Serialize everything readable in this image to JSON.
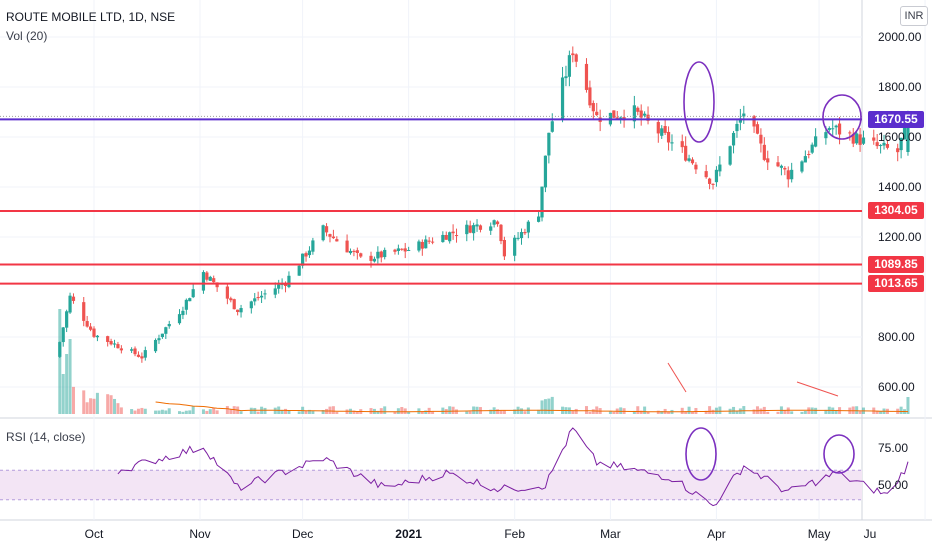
{
  "header": {
    "title": "ROUTE MOBILE LTD, 1D, NSE",
    "volume_label": "Vol (20)",
    "rsi_label": "RSI (14, close)",
    "currency": "INR"
  },
  "colors": {
    "up": "#26a69a",
    "down": "#ef5350",
    "hline": "#f23645",
    "price_line": "#5b2dcd",
    "rsi_line": "#7b1fa2",
    "rsi_band": "#f3e5f5",
    "vol_ma": "#ef6c00",
    "annotation": "#7b2fbf"
  },
  "axes": {
    "price_ticks": [
      "2000.00",
      "1800.00",
      "1600.00",
      "1400.00",
      "1200.00",
      "800.00",
      "600.00"
    ],
    "rsi_ticks": [
      "75.00",
      "50.00"
    ],
    "x_ticks": [
      {
        "label": "Oct",
        "bold": false
      },
      {
        "label": "Nov",
        "bold": false
      },
      {
        "label": "Dec",
        "bold": false
      },
      {
        "label": "2021",
        "bold": true
      },
      {
        "label": "Feb",
        "bold": false
      },
      {
        "label": "Mar",
        "bold": false
      },
      {
        "label": "Apr",
        "bold": false
      },
      {
        "label": "May",
        "bold": false
      },
      {
        "label": "Ju",
        "bold": false
      }
    ]
  },
  "chart_data": {
    "type": "candlestick",
    "title": "ROUTE MOBILE LTD, 1D, NSE",
    "price_ylim": [
      560,
      2030
    ],
    "rsi_ylim": [
      30,
      90
    ],
    "rsi_band": [
      40,
      60
    ],
    "horizontal_levels": [
      {
        "value": 1670.55,
        "label": "1670.55",
        "style": "last_price"
      },
      {
        "value": 1304.05,
        "label": "1304.05",
        "style": "support_resistance"
      },
      {
        "value": 1089.85,
        "label": "1089.85",
        "style": "support_resistance"
      },
      {
        "value": 1013.65,
        "label": "1013.65",
        "style": "support_resistance"
      }
    ],
    "ohlc_anchors": [
      {
        "date": "2020-09-21",
        "close": 780
      },
      {
        "date": "2020-09-24",
        "close": 960
      },
      {
        "date": "2020-10-01",
        "close": 810
      },
      {
        "date": "2020-10-15",
        "close": 720
      },
      {
        "date": "2020-10-27",
        "close": 920
      },
      {
        "date": "2020-11-02",
        "close": 1060
      },
      {
        "date": "2020-11-12",
        "close": 910
      },
      {
        "date": "2020-11-26",
        "close": 1020
      },
      {
        "date": "2020-12-07",
        "close": 1230
      },
      {
        "date": "2020-12-18",
        "close": 1110
      },
      {
        "date": "2021-01-01",
        "close": 1150
      },
      {
        "date": "2021-01-12",
        "close": 1210
      },
      {
        "date": "2021-01-27",
        "close": 1270
      },
      {
        "date": "2021-01-29",
        "close": 1130
      },
      {
        "date": "2021-02-08",
        "close": 1300
      },
      {
        "date": "2021-02-11",
        "close": 1620
      },
      {
        "date": "2021-02-18",
        "close": 1950
      },
      {
        "date": "2021-02-25",
        "close": 1680
      },
      {
        "date": "2021-03-08",
        "close": 1700
      },
      {
        "date": "2021-03-23",
        "close": 1530
      },
      {
        "date": "2021-03-31",
        "close": 1420
      },
      {
        "date": "2021-04-07",
        "close": 1640
      },
      {
        "date": "2021-04-09",
        "close": 1700
      },
      {
        "date": "2021-04-15",
        "close": 1530
      },
      {
        "date": "2021-04-22",
        "close": 1450
      },
      {
        "date": "2021-05-04",
        "close": 1640
      },
      {
        "date": "2021-05-18",
        "close": 1560
      },
      {
        "date": "2021-05-24",
        "close": 1540
      },
      {
        "date": "2021-05-27",
        "close": 1670.55
      }
    ],
    "rsi_anchors": [
      {
        "date": "2020-10-08",
        "value": 60
      },
      {
        "date": "2020-11-02",
        "value": 76
      },
      {
        "date": "2020-11-12",
        "value": 48
      },
      {
        "date": "2020-12-07",
        "value": 68
      },
      {
        "date": "2020-12-25",
        "value": 48
      },
      {
        "date": "2021-01-12",
        "value": 58
      },
      {
        "date": "2021-01-28",
        "value": 47
      },
      {
        "date": "2021-02-10",
        "value": 50
      },
      {
        "date": "2021-02-18",
        "value": 88
      },
      {
        "date": "2021-02-25",
        "value": 65
      },
      {
        "date": "2021-03-19",
        "value": 55
      },
      {
        "date": "2021-03-31",
        "value": 36
      },
      {
        "date": "2021-04-09",
        "value": 63
      },
      {
        "date": "2021-04-22",
        "value": 45
      },
      {
        "date": "2021-05-06",
        "value": 58
      },
      {
        "date": "2021-05-21",
        "value": 43
      },
      {
        "date": "2021-05-27",
        "value": 64
      }
    ],
    "volume_note": "volume spike at listing (late Sep 2020) and on the last bar (2021-05-27)"
  }
}
